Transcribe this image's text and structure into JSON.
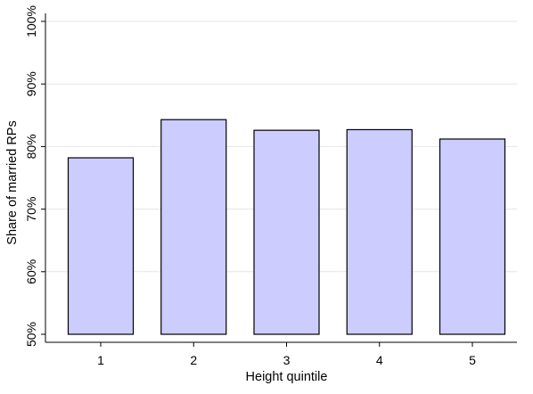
{
  "chart_data": {
    "type": "bar",
    "title": "",
    "xlabel": "Height quintile",
    "ylabel": "Share of married RPs",
    "categories": [
      "1",
      "2",
      "3",
      "4",
      "5"
    ],
    "values": [
      78.2,
      84.3,
      82.6,
      82.7,
      81.2
    ],
    "ylim": [
      50,
      100
    ],
    "yticks": [
      50,
      60,
      70,
      80,
      90,
      100
    ],
    "ytick_labels": [
      "50%",
      "60%",
      "70%",
      "80%",
      "90%",
      "100%"
    ],
    "grid": "horizontal",
    "legend": "none",
    "colors": {
      "bar_fill": "#ccccff",
      "bar_stroke": "#000000",
      "grid": "#e6e6e6",
      "axis": "#000000"
    }
  }
}
